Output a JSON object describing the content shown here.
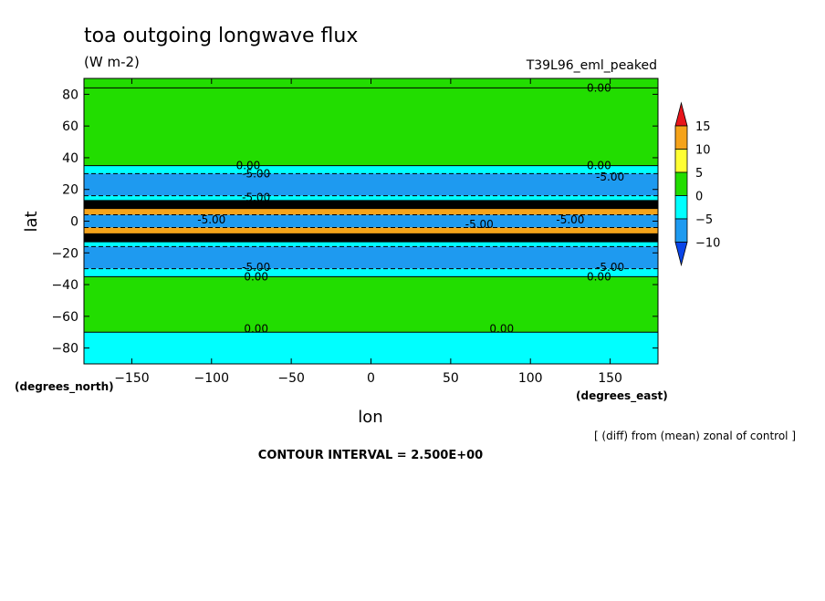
{
  "chart_data": {
    "type": "heatmap",
    "title": "toa outgoing longwave flux",
    "units": "(W m-2)",
    "experiment": "T39L96_eml_peaked",
    "xlabel": "lon",
    "ylabel": "lat",
    "x_unit_label": "(degrees_east)",
    "y_unit_label": "(degrees_north)",
    "xlim": [
      -180,
      180
    ],
    "ylim": [
      -90,
      90
    ],
    "x_ticks": [
      -150,
      -100,
      -50,
      0,
      50,
      100,
      150
    ],
    "y_ticks": [
      80,
      60,
      40,
      20,
      0,
      -20,
      -40,
      -60,
      -80
    ],
    "note": "[ (diff) from (mean) zonal of control ]",
    "contour_interval": "CONTOUR INTERVAL = 2.500E+00",
    "colorbar": {
      "levels": [
        15,
        10,
        5,
        0,
        -5,
        -10
      ],
      "colors": [
        "#e8151b",
        "#f5a31a",
        "#ffff33",
        "#22dd00",
        "#00ffff",
        "#1e9af0",
        "#0a45e8"
      ]
    },
    "bands": [
      {
        "lat_top": 90,
        "lat_bottom": 84,
        "value_range": "0 to 5"
      },
      {
        "lat_top": 84,
        "lat_bottom": 35,
        "value_range": "0 to 5"
      },
      {
        "lat_top": 35,
        "lat_bottom": 30,
        "value_range": "-5 to 0"
      },
      {
        "lat_top": 30,
        "lat_bottom": 16,
        "value_range": "-10 to -5"
      },
      {
        "lat_top": 16,
        "lat_bottom": 13,
        "value_range": "-5 to 0"
      },
      {
        "lat_top": 13,
        "lat_bottom": 8,
        "value_range": "< -10"
      },
      {
        "lat_top": 8,
        "lat_bottom": 4,
        "value_range": "5 to 15"
      },
      {
        "lat_top": 4,
        "lat_bottom": -4,
        "value_range": "-10 to -5"
      },
      {
        "lat_top": -4,
        "lat_bottom": -8,
        "value_range": "5 to 15"
      },
      {
        "lat_top": -8,
        "lat_bottom": -13,
        "value_range": "< -10"
      },
      {
        "lat_top": -13,
        "lat_bottom": -16,
        "value_range": "-5 to 0"
      },
      {
        "lat_top": -16,
        "lat_bottom": -30,
        "value_range": "-10 to -5"
      },
      {
        "lat_top": -30,
        "lat_bottom": -35,
        "value_range": "-5 to 0"
      },
      {
        "lat_top": -35,
        "lat_bottom": -70,
        "value_range": "0 to 5"
      },
      {
        "lat_top": -70,
        "lat_bottom": -90,
        "value_range": "-5 to 0"
      }
    ],
    "contour_labels": [
      {
        "text": "0.00",
        "lon": 143,
        "lat": 84
      },
      {
        "text": "0.00",
        "lon": -77,
        "lat": 35
      },
      {
        "text": "-5.00",
        "lon": -72,
        "lat": 30
      },
      {
        "text": "0.00",
        "lon": 143,
        "lat": 35
      },
      {
        "text": "-5.00",
        "lon": 150,
        "lat": 28
      },
      {
        "text": "-5.00",
        "lon": -72,
        "lat": 15
      },
      {
        "text": "-5.00",
        "lon": -100,
        "lat": 1
      },
      {
        "text": "-5.00",
        "lon": 68,
        "lat": -2
      },
      {
        "text": "-5.00",
        "lon": 125,
        "lat": 1
      },
      {
        "text": "-5.00",
        "lon": -72,
        "lat": -29
      },
      {
        "text": "0.00",
        "lon": -72,
        "lat": -35
      },
      {
        "text": "-5.00",
        "lon": 150,
        "lat": -29
      },
      {
        "text": "0.00",
        "lon": 143,
        "lat": -35
      },
      {
        "text": "0.00",
        "lon": -72,
        "lat": -68
      },
      {
        "text": "0.00",
        "lon": 82,
        "lat": -68
      }
    ]
  }
}
